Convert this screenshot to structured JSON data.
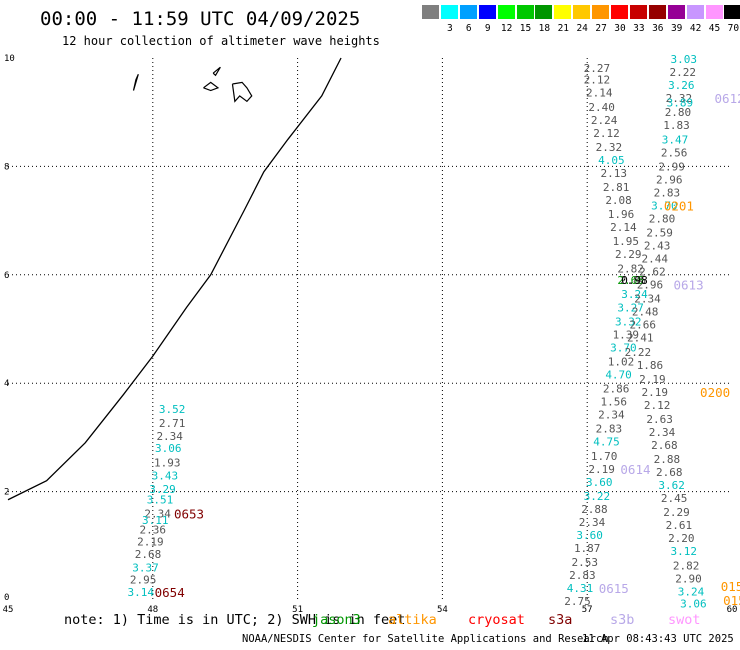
{
  "header": {
    "title": "00:00 - 11:59 UTC 04/09/2025",
    "subtitle": "12 hour collection of altimeter wave heights"
  },
  "legend": {
    "unit_label": "(ft)",
    "bins": [
      {
        "label": "",
        "color": "#7f7f7f"
      },
      {
        "label": "3",
        "color": "#00ffff"
      },
      {
        "label": "6",
        "color": "#00a0ff"
      },
      {
        "label": "9",
        "color": "#0000ff"
      },
      {
        "label": "12",
        "color": "#00ff00"
      },
      {
        "label": "15",
        "color": "#00c800"
      },
      {
        "label": "18",
        "color": "#009600"
      },
      {
        "label": "21",
        "color": "#ffff00"
      },
      {
        "label": "24",
        "color": "#ffc800"
      },
      {
        "label": "27",
        "color": "#ff9600"
      },
      {
        "label": "30",
        "color": "#ff0000"
      },
      {
        "label": "33",
        "color": "#c80000"
      },
      {
        "label": "36",
        "color": "#960000"
      },
      {
        "label": "39",
        "color": "#960096"
      },
      {
        "label": "42",
        "color": "#c896ff"
      },
      {
        "label": "45",
        "color": "#ff96ff"
      },
      {
        "label": "70",
        "color": "#000000"
      }
    ]
  },
  "map": {
    "lon_range": [
      45,
      60
    ],
    "lat_range": [
      0,
      10
    ],
    "lon_ticks": [
      "45",
      "48",
      "51",
      "54",
      "57",
      "60"
    ],
    "lat_ticks": [
      "0",
      "2",
      "4",
      "6",
      "8",
      "10"
    ],
    "gridlines": true,
    "coastline": [
      [
        45,
        1.85
      ],
      [
        45.8,
        2.2
      ],
      [
        46.6,
        2.9
      ],
      [
        47.4,
        3.8
      ],
      [
        48,
        4.5
      ],
      [
        48.7,
        5.4
      ],
      [
        49.2,
        6.0
      ],
      [
        49.9,
        7.2
      ],
      [
        50.3,
        7.9
      ],
      [
        50.8,
        8.5
      ],
      [
        51.5,
        9.3
      ],
      [
        51.9,
        10.0
      ]
    ],
    "islands": [
      [
        [
          47.6,
          9.4
        ],
        [
          47.7,
          9.7
        ],
        [
          47.65,
          9.6
        ],
        [
          47.6,
          9.4
        ]
      ],
      [
        [
          49.05,
          9.45
        ],
        [
          49.2,
          9.55
        ],
        [
          49.35,
          9.45
        ],
        [
          49.2,
          9.4
        ],
        [
          49.05,
          9.45
        ]
      ],
      [
        [
          49.25,
          9.72
        ],
        [
          49.4,
          9.83
        ],
        [
          49.3,
          9.68
        ],
        [
          49.25,
          9.72
        ]
      ],
      [
        [
          49.65,
          9.52
        ],
        [
          49.85,
          9.55
        ],
        [
          49.95,
          9.45
        ],
        [
          50.05,
          9.3
        ],
        [
          49.95,
          9.2
        ],
        [
          49.8,
          9.3
        ],
        [
          49.7,
          9.2
        ],
        [
          49.65,
          9.52
        ]
      ]
    ],
    "tracks": [
      {
        "name": "jason3-track-a",
        "color": "#00bfbf",
        "points": [
          {
            "lon": 48.4,
            "lat": 3.52,
            "swh": "3.52"
          },
          {
            "lon": 48.4,
            "lat": 3.27,
            "swh": "2.71"
          },
          {
            "lon": 48.35,
            "lat": 3.03,
            "swh": "2.34"
          },
          {
            "lon": 48.32,
            "lat": 2.8,
            "swh": "3.06"
          },
          {
            "lon": 48.3,
            "lat": 2.54,
            "swh": "1.93"
          },
          {
            "lon": 48.25,
            "lat": 2.3,
            "swh": "3.43"
          },
          {
            "lon": 48.2,
            "lat": 2.05,
            "swh": "3.29"
          },
          {
            "lon": 48.15,
            "lat": 1.85,
            "swh": "3.51"
          },
          {
            "lon": 48.1,
            "lat": 1.6,
            "swh": "2.34"
          },
          {
            "lon": 48.05,
            "lat": 1.48,
            "swh": "3.11"
          },
          {
            "lon": 48.0,
            "lat": 1.3,
            "swh": "2.36"
          },
          {
            "lon": 47.95,
            "lat": 1.08,
            "swh": "2.19"
          },
          {
            "lon": 47.9,
            "lat": 0.85,
            "swh": "2.68"
          },
          {
            "lon": 47.85,
            "lat": 0.6,
            "swh": "3.37"
          },
          {
            "lon": 47.8,
            "lat": 0.38,
            "swh": "2.95"
          },
          {
            "lon": 47.75,
            "lat": 0.15,
            "swh": "3.14"
          }
        ]
      },
      {
        "name": "track-b",
        "color": "#00bfbf",
        "points": [
          {
            "lon": 57.2,
            "lat": 9.82,
            "swh": "2.27"
          },
          {
            "lon": 57.2,
            "lat": 9.6,
            "swh": "2.12"
          },
          {
            "lon": 57.25,
            "lat": 9.36,
            "swh": "2.14"
          },
          {
            "lon": 57.3,
            "lat": 9.1,
            "swh": "2.40"
          },
          {
            "lon": 57.35,
            "lat": 8.86,
            "swh": "2.24"
          },
          {
            "lon": 57.4,
            "lat": 8.62,
            "swh": "2.12"
          },
          {
            "lon": 57.45,
            "lat": 8.36,
            "swh": "2.32"
          },
          {
            "lon": 57.5,
            "lat": 8.12,
            "swh": "4.05"
          },
          {
            "lon": 57.55,
            "lat": 7.88,
            "swh": "2.13"
          },
          {
            "lon": 57.6,
            "lat": 7.62,
            "swh": "2.81"
          },
          {
            "lon": 57.65,
            "lat": 7.38,
            "swh": "2.08"
          },
          {
            "lon": 57.7,
            "lat": 7.12,
            "swh": "1.96"
          },
          {
            "lon": 57.75,
            "lat": 6.88,
            "swh": "2.14"
          },
          {
            "lon": 57.8,
            "lat": 6.62,
            "swh": "1.95"
          },
          {
            "lon": 57.85,
            "lat": 6.38,
            "swh": "2.29"
          },
          {
            "lon": 57.9,
            "lat": 6.12,
            "swh": "2.82"
          },
          {
            "lon": 57.95,
            "lat": 5.9,
            "swh": "2.85"
          },
          {
            "lon": 57.98,
            "lat": 5.65,
            "swh": "3.24"
          },
          {
            "lon": 57.9,
            "lat": 5.4,
            "swh": "3.27"
          },
          {
            "lon": 57.85,
            "lat": 5.14,
            "swh": "3.32"
          },
          {
            "lon": 57.8,
            "lat": 4.9,
            "swh": "1.39"
          },
          {
            "lon": 57.75,
            "lat": 4.66,
            "swh": "3.70"
          },
          {
            "lon": 57.7,
            "lat": 4.4,
            "swh": "1.02"
          },
          {
            "lon": 57.65,
            "lat": 4.16,
            "swh": "4.70"
          },
          {
            "lon": 57.6,
            "lat": 3.9,
            "swh": "2.86"
          },
          {
            "lon": 57.55,
            "lat": 3.66,
            "swh": "1.56"
          },
          {
            "lon": 57.5,
            "lat": 3.42,
            "swh": "2.34"
          },
          {
            "lon": 57.45,
            "lat": 3.16,
            "swh": "2.83"
          },
          {
            "lon": 57.4,
            "lat": 2.92,
            "swh": "4.75"
          },
          {
            "lon": 57.35,
            "lat": 2.66,
            "swh": "1.70"
          },
          {
            "lon": 57.3,
            "lat": 2.42,
            "swh": "2.19"
          },
          {
            "lon": 57.25,
            "lat": 2.18,
            "swh": "3.60"
          },
          {
            "lon": 57.2,
            "lat": 1.92,
            "swh": "3.22"
          },
          {
            "lon": 57.15,
            "lat": 1.68,
            "swh": "2.88"
          },
          {
            "lon": 57.1,
            "lat": 1.44,
            "swh": "2.34"
          },
          {
            "lon": 57.05,
            "lat": 1.2,
            "swh": "3.60"
          },
          {
            "lon": 57.0,
            "lat": 0.96,
            "swh": "1.87"
          },
          {
            "lon": 56.95,
            "lat": 0.7,
            "swh": "2.53"
          },
          {
            "lon": 56.9,
            "lat": 0.46,
            "swh": "2.83"
          },
          {
            "lon": 56.85,
            "lat": 0.22,
            "swh": "4.31"
          },
          {
            "lon": 56.8,
            "lat": -0.02,
            "swh": "2.75"
          }
        ]
      },
      {
        "name": "track-c",
        "color": "#00bfbf",
        "points": [
          {
            "lon": 59.0,
            "lat": 9.98,
            "swh": "3.03"
          },
          {
            "lon": 58.98,
            "lat": 9.74,
            "swh": "2.22"
          },
          {
            "lon": 58.95,
            "lat": 9.5,
            "swh": "3.26"
          },
          {
            "lon": 58.9,
            "lat": 9.26,
            "swh": "2.32"
          },
          {
            "lon": 58.92,
            "lat": 9.18,
            "swh": "3.89"
          },
          {
            "lon": 58.88,
            "lat": 9.0,
            "swh": "2.80"
          },
          {
            "lon": 58.85,
            "lat": 8.76,
            "swh": "1.83"
          },
          {
            "lon": 58.82,
            "lat": 8.5,
            "swh": "3.47"
          },
          {
            "lon": 58.8,
            "lat": 8.26,
            "swh": "2.56"
          },
          {
            "lon": 58.75,
            "lat": 8.0,
            "swh": "2.99"
          },
          {
            "lon": 58.7,
            "lat": 7.76,
            "swh": "2.96"
          },
          {
            "lon": 58.65,
            "lat": 7.52,
            "swh": "2.83"
          },
          {
            "lon": 58.6,
            "lat": 7.28,
            "swh": "3.70"
          },
          {
            "lon": 58.55,
            "lat": 7.04,
            "swh": "2.80"
          },
          {
            "lon": 58.5,
            "lat": 6.78,
            "swh": "2.59"
          },
          {
            "lon": 58.45,
            "lat": 6.54,
            "swh": "2.43"
          },
          {
            "lon": 58.4,
            "lat": 6.3,
            "swh": "2.44"
          },
          {
            "lon": 58.35,
            "lat": 6.06,
            "swh": "2.62"
          },
          {
            "lon": 58.3,
            "lat": 5.82,
            "swh": "2.96"
          },
          {
            "lon": 58.25,
            "lat": 5.56,
            "swh": "2.34"
          },
          {
            "lon": 58.2,
            "lat": 5.32,
            "swh": "2.48"
          },
          {
            "lon": 58.15,
            "lat": 5.08,
            "swh": "2.66"
          },
          {
            "lon": 58.1,
            "lat": 4.84,
            "swh": "2.41"
          },
          {
            "lon": 58.05,
            "lat": 4.58,
            "swh": "2.22"
          },
          {
            "lon": 58.3,
            "lat": 4.34,
            "swh": "1.86"
          },
          {
            "lon": 58.35,
            "lat": 4.08,
            "swh": "2.19"
          },
          {
            "lon": 58.4,
            "lat": 3.84,
            "swh": "2.19"
          },
          {
            "lon": 58.45,
            "lat": 3.6,
            "swh": "2.12"
          },
          {
            "lon": 58.5,
            "lat": 3.34,
            "swh": "2.63"
          },
          {
            "lon": 58.55,
            "lat": 3.1,
            "swh": "2.34"
          },
          {
            "lon": 58.6,
            "lat": 2.86,
            "swh": "2.68"
          },
          {
            "lon": 58.65,
            "lat": 2.6,
            "swh": "2.88"
          },
          {
            "lon": 58.7,
            "lat": 2.36,
            "swh": "2.68"
          },
          {
            "lon": 58.75,
            "lat": 2.12,
            "swh": "3.62"
          },
          {
            "lon": 58.8,
            "lat": 1.88,
            "swh": "2.45"
          },
          {
            "lon": 58.85,
            "lat": 1.62,
            "swh": "2.29"
          },
          {
            "lon": 58.9,
            "lat": 1.38,
            "swh": "2.61"
          },
          {
            "lon": 58.95,
            "lat": 1.14,
            "swh": "2.20"
          },
          {
            "lon": 59.0,
            "lat": 0.9,
            "swh": "3.12"
          },
          {
            "lon": 59.05,
            "lat": 0.64,
            "swh": "2.82"
          },
          {
            "lon": 59.1,
            "lat": 0.4,
            "swh": "2.90"
          },
          {
            "lon": 59.15,
            "lat": 0.16,
            "swh": "3.24"
          },
          {
            "lon": 59.2,
            "lat": -0.06,
            "swh": "3.06"
          }
        ]
      }
    ],
    "special_labels": [
      {
        "text": "2.65",
        "lon": 57.9,
        "lat": 5.9,
        "color": "#009600"
      },
      {
        "text": "0.98",
        "lon": 57.98,
        "lat": 5.9,
        "color": "#000000"
      }
    ],
    "time_markers": [
      {
        "text": "0653",
        "lon": 48.75,
        "lat": 1.6,
        "color": "#800000"
      },
      {
        "text": "0654",
        "lon": 48.35,
        "lat": 0.15,
        "color": "#800000"
      },
      {
        "text": "0612",
        "lon": 59.95,
        "lat": 9.26,
        "color": "#b8a8e8"
      },
      {
        "text": "0201",
        "lon": 58.9,
        "lat": 7.28,
        "color": "#ff9600"
      },
      {
        "text": "0613",
        "lon": 59.1,
        "lat": 5.82,
        "color": "#b8a8e8"
      },
      {
        "text": "0200",
        "lon": 59.65,
        "lat": 3.84,
        "color": "#ff9600"
      },
      {
        "text": "0614",
        "lon": 58.0,
        "lat": 2.42,
        "color": "#b8a8e8"
      },
      {
        "text": "0615",
        "lon": 57.55,
        "lat": 0.22,
        "color": "#b8a8e8"
      },
      {
        "text": "015",
        "lon": 60.0,
        "lat": 0.26,
        "color": "#ff9600"
      },
      {
        "text": "015",
        "lon": 60.05,
        "lat": 0.0,
        "color": "#ff9600"
      }
    ]
  },
  "footer": {
    "note_text": "note: 1) Time is in UTC; 2) SWH is in feet",
    "satellites": [
      {
        "label": "jason3",
        "color": "#009600"
      },
      {
        "label": "altika",
        "color": "#ff9600"
      },
      {
        "label": "cryosat",
        "color": "#ff0000"
      },
      {
        "label": "s3a",
        "color": "#800000"
      },
      {
        "label": "s3b",
        "color": "#b8a8e8"
      },
      {
        "label": "swot",
        "color": "#ff96ff"
      }
    ],
    "credit": "NOAA/NESDIS Center for Satellite Applications and Research",
    "timestamp": "11 Apr 08:43:43 UTC 2025"
  }
}
